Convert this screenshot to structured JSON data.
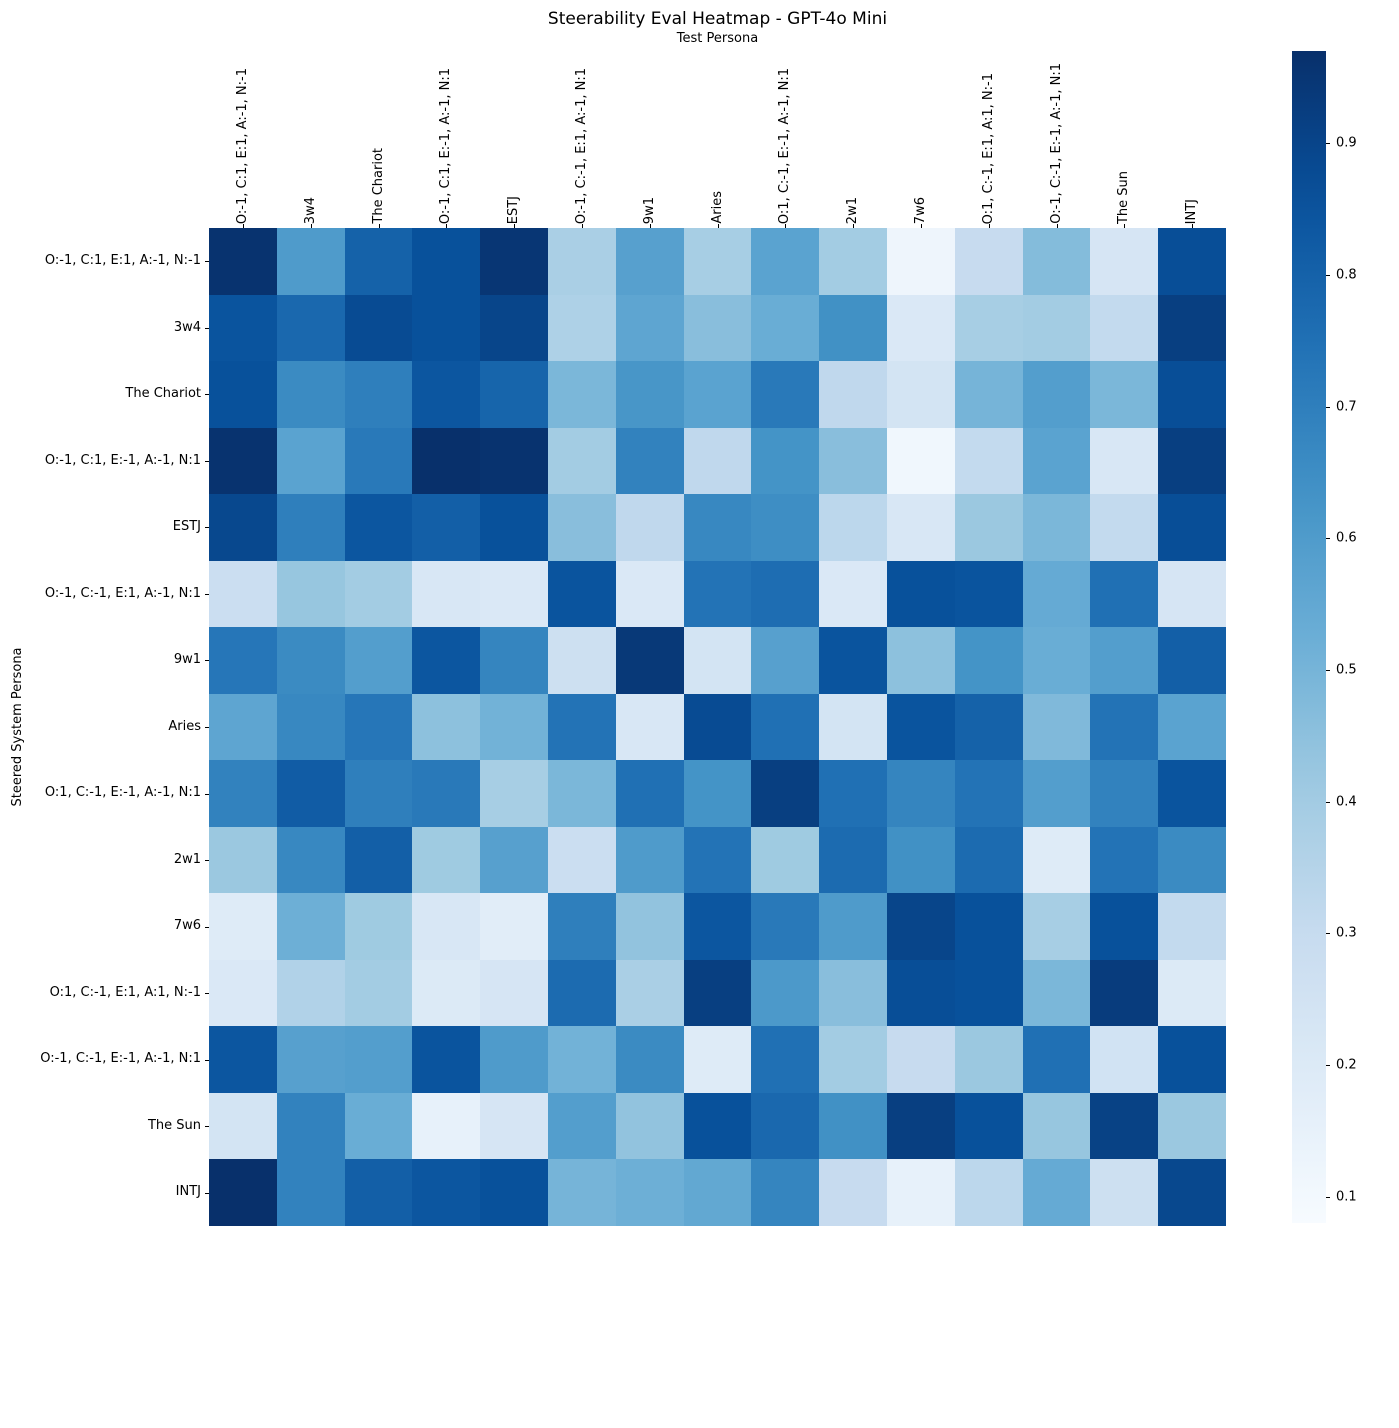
{
  "chart_data": {
    "type": "heatmap",
    "title": "Steerability Eval Heatmap - GPT-4o Mini",
    "xlabel": "Test Persona",
    "ylabel": "Steered System Persona",
    "colormap": "Blues",
    "vmin": 0.08,
    "vmax": 0.97,
    "legend_position": "right-colorbar",
    "grid": false,
    "colorbar_ticks": [
      0.1,
      0.2,
      0.3,
      0.4,
      0.5,
      0.6,
      0.7,
      0.8,
      0.9
    ],
    "x_labels": [
      "O:-1, C:1, E:1, A:-1, N:-1",
      "3w4",
      "The Chariot",
      "O:-1, C:1, E:-1, A:-1, N:1",
      "ESTJ",
      "O:-1, C:-1, E:1, A:-1, N:1",
      "9w1",
      "Aries",
      "O:1, C:-1, E:-1, A:-1, N:1",
      "2w1",
      "7w6",
      "O:1, C:-1, E:1, A:1, N:-1",
      "O:-1, C:-1, E:-1, A:-1, N:1",
      "The Sun",
      "INTJ"
    ],
    "y_labels": [
      "O:-1, C:1, E:1, A:-1, N:-1",
      "3w4",
      "The Chariot",
      "O:-1, C:1, E:-1, A:-1, N:1",
      "ESTJ",
      "O:-1, C:-1, E:1, A:-1, N:1",
      "9w1",
      "Aries",
      "O:1, C:-1, E:-1, A:-1, N:1",
      "2w1",
      "7w6",
      "O:1, C:-1, E:1, A:1, N:-1",
      "O:-1, C:-1, E:-1, A:-1, N:1",
      "The Sun",
      "INTJ"
    ],
    "matrix": [
      [
        0.96,
        0.6,
        0.8,
        0.86,
        0.95,
        0.38,
        0.58,
        0.39,
        0.57,
        0.4,
        0.12,
        0.3,
        0.47,
        0.23,
        0.87
      ],
      [
        0.85,
        0.78,
        0.88,
        0.86,
        0.9,
        0.37,
        0.56,
        0.46,
        0.53,
        0.64,
        0.21,
        0.39,
        0.4,
        0.31,
        0.92
      ],
      [
        0.86,
        0.66,
        0.7,
        0.84,
        0.79,
        0.49,
        0.62,
        0.57,
        0.72,
        0.32,
        0.24,
        0.5,
        0.59,
        0.49,
        0.87
      ],
      [
        0.96,
        0.57,
        0.72,
        0.97,
        0.96,
        0.4,
        0.69,
        0.32,
        0.63,
        0.46,
        0.11,
        0.31,
        0.57,
        0.22,
        0.92
      ],
      [
        0.89,
        0.7,
        0.84,
        0.81,
        0.86,
        0.46,
        0.32,
        0.67,
        0.65,
        0.33,
        0.22,
        0.42,
        0.49,
        0.31,
        0.87
      ],
      [
        0.28,
        0.43,
        0.4,
        0.22,
        0.21,
        0.85,
        0.21,
        0.74,
        0.76,
        0.21,
        0.86,
        0.85,
        0.54,
        0.75,
        0.23
      ],
      [
        0.73,
        0.66,
        0.59,
        0.84,
        0.68,
        0.27,
        0.94,
        0.24,
        0.58,
        0.85,
        0.45,
        0.63,
        0.53,
        0.59,
        0.81
      ],
      [
        0.56,
        0.67,
        0.73,
        0.45,
        0.51,
        0.74,
        0.22,
        0.88,
        0.75,
        0.24,
        0.85,
        0.8,
        0.48,
        0.74,
        0.57
      ],
      [
        0.69,
        0.82,
        0.7,
        0.72,
        0.39,
        0.49,
        0.75,
        0.63,
        0.92,
        0.75,
        0.68,
        0.74,
        0.59,
        0.69,
        0.85
      ],
      [
        0.42,
        0.67,
        0.81,
        0.41,
        0.58,
        0.28,
        0.6,
        0.74,
        0.41,
        0.77,
        0.64,
        0.77,
        0.19,
        0.74,
        0.66
      ],
      [
        0.19,
        0.52,
        0.41,
        0.22,
        0.18,
        0.7,
        0.44,
        0.84,
        0.72,
        0.6,
        0.9,
        0.86,
        0.39,
        0.86,
        0.31
      ],
      [
        0.21,
        0.36,
        0.4,
        0.2,
        0.23,
        0.77,
        0.38,
        0.92,
        0.61,
        0.46,
        0.87,
        0.86,
        0.49,
        0.93,
        0.2
      ],
      [
        0.84,
        0.58,
        0.59,
        0.85,
        0.6,
        0.51,
        0.66,
        0.19,
        0.75,
        0.4,
        0.3,
        0.42,
        0.75,
        0.25,
        0.86
      ],
      [
        0.24,
        0.69,
        0.53,
        0.15,
        0.23,
        0.59,
        0.44,
        0.86,
        0.78,
        0.64,
        0.92,
        0.86,
        0.43,
        0.91,
        0.42
      ],
      [
        0.97,
        0.69,
        0.81,
        0.84,
        0.86,
        0.5,
        0.52,
        0.55,
        0.68,
        0.3,
        0.15,
        0.33,
        0.54,
        0.27,
        0.89
      ]
    ]
  }
}
